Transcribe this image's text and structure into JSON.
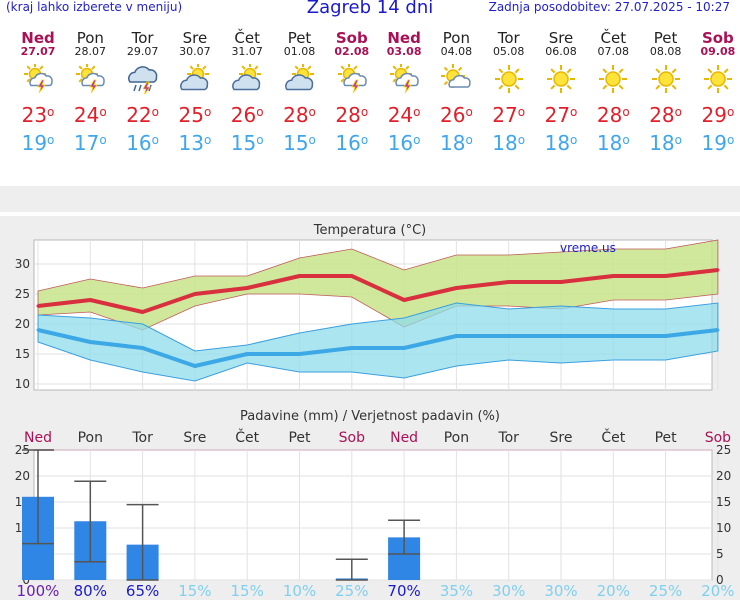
{
  "header": {
    "left": "(kraj lahko izberete v meniju)",
    "title": "Zagreb 14 dni",
    "right": "Zadnja posodobitev: 27.07.2025 - 10:27"
  },
  "days": [
    {
      "name": "Ned",
      "date": "27.07",
      "weekend": true,
      "icon": "sun-cloud-lightning-icon",
      "max": "23",
      "min": "19"
    },
    {
      "name": "Pon",
      "date": "28.07",
      "weekend": false,
      "icon": "sun-cloud-lightning-icon",
      "max": "24",
      "min": "17"
    },
    {
      "name": "Tor",
      "date": "29.07",
      "weekend": false,
      "icon": "cloud-rain-lightning-icon",
      "max": "22",
      "min": "16"
    },
    {
      "name": "Sre",
      "date": "30.07",
      "weekend": false,
      "icon": "sun-cloud-icon",
      "max": "25",
      "min": "13"
    },
    {
      "name": "Čet",
      "date": "31.07",
      "weekend": false,
      "icon": "sun-cloud-icon",
      "max": "26",
      "min": "15"
    },
    {
      "name": "Pet",
      "date": "01.08",
      "weekend": false,
      "icon": "sun-cloud-icon",
      "max": "28",
      "min": "15"
    },
    {
      "name": "Sob",
      "date": "02.08",
      "weekend": true,
      "icon": "sun-cloud-lightning-icon",
      "max": "28",
      "min": "16"
    },
    {
      "name": "Ned",
      "date": "03.08",
      "weekend": true,
      "icon": "sun-cloud-lightning-icon",
      "max": "24",
      "min": "16"
    },
    {
      "name": "Pon",
      "date": "04.08",
      "weekend": false,
      "icon": "sun-small-cloud-icon",
      "max": "26",
      "min": "18"
    },
    {
      "name": "Tor",
      "date": "05.08",
      "weekend": false,
      "icon": "sun-icon",
      "max": "27",
      "min": "18"
    },
    {
      "name": "Sre",
      "date": "06.08",
      "weekend": false,
      "icon": "sun-icon",
      "max": "27",
      "min": "18"
    },
    {
      "name": "Čet",
      "date": "07.08",
      "weekend": false,
      "icon": "sun-icon",
      "max": "28",
      "min": "18"
    },
    {
      "name": "Pet",
      "date": "08.08",
      "weekend": false,
      "icon": "sun-icon",
      "max": "28",
      "min": "18"
    },
    {
      "name": "Sob",
      "date": "09.08",
      "weekend": true,
      "icon": "sun-icon",
      "max": "29",
      "min": "19"
    }
  ],
  "colors": {
    "max_line": "#d8303e",
    "min_line": "#3ca8e6",
    "max_band": "#c8e48a",
    "min_band": "#8fdcea",
    "rain_bar": "#2f86e4",
    "weekend": "#aa1155",
    "title_blue": "#1a1acc"
  },
  "chart_data": [
    {
      "type": "line",
      "title": "Temperatura (°C)",
      "watermark": "vreme.us",
      "categories": [
        "27.07",
        "28.07",
        "29.07",
        "30.07",
        "31.07",
        "01.08",
        "02.08",
        "03.08",
        "04.08",
        "05.08",
        "06.08",
        "07.08",
        "08.08",
        "09.08"
      ],
      "ylim": [
        9,
        34
      ],
      "yticks": [
        10,
        15,
        20,
        25,
        30
      ],
      "grid": true,
      "series": [
        {
          "role": "max",
          "values": [
            23,
            24,
            22,
            25,
            26,
            28,
            28,
            24,
            26,
            27,
            27,
            28,
            28,
            29
          ]
        },
        {
          "role": "min",
          "values": [
            19,
            17,
            16,
            13,
            15,
            15,
            16,
            16,
            18,
            18,
            18,
            18,
            18,
            19
          ]
        }
      ],
      "max_range": {
        "upper": [
          25.5,
          27.5,
          26,
          28,
          28,
          31,
          32.5,
          29,
          31.5,
          31.5,
          32,
          32.5,
          32.5,
          34
        ],
        "lower": [
          21.5,
          22,
          19,
          23,
          25,
          25,
          24.5,
          19.5,
          23,
          23,
          22.5,
          24,
          24,
          25
        ]
      },
      "min_range": {
        "upper": [
          21.5,
          21,
          20,
          15.5,
          16.5,
          18.5,
          20,
          21,
          23.5,
          22.5,
          23,
          22.5,
          22.5,
          23.5
        ],
        "lower": [
          17,
          14,
          12,
          10.5,
          13.5,
          12,
          12,
          11,
          13,
          14,
          13.5,
          14,
          14,
          15.5
        ]
      }
    },
    {
      "type": "bar",
      "title": "Padavine (mm) / Verjetnost padavin (%)",
      "categories": [
        "Ned",
        "Pon",
        "Tor",
        "Sre",
        "Čet",
        "Pet",
        "Sob",
        "Ned",
        "Pon",
        "Tor",
        "Sre",
        "Čet",
        "Pet",
        "Sob"
      ],
      "weekend": [
        true,
        false,
        false,
        false,
        false,
        false,
        true,
        true,
        false,
        false,
        false,
        false,
        false,
        true
      ],
      "ylim": [
        0,
        25
      ],
      "yticks": [
        0,
        5,
        10,
        15,
        20,
        25
      ],
      "values": [
        16,
        11.3,
        6.8,
        0,
        0,
        0,
        0.3,
        8.2,
        0,
        0,
        0,
        0,
        0,
        0
      ],
      "error_high": [
        27,
        19,
        14.5,
        null,
        null,
        null,
        4,
        11.5,
        null,
        null,
        null,
        null,
        null,
        null
      ],
      "error_low": [
        7,
        3.5,
        0,
        null,
        null,
        null,
        0,
        5,
        null,
        null,
        null,
        null,
        null,
        null
      ],
      "probability": [
        "100%",
        "80%",
        "65%",
        "15%",
        "15%",
        "10%",
        "25%",
        "70%",
        "35%",
        "30%",
        "30%",
        "20%",
        "25%",
        "20%"
      ]
    }
  ]
}
